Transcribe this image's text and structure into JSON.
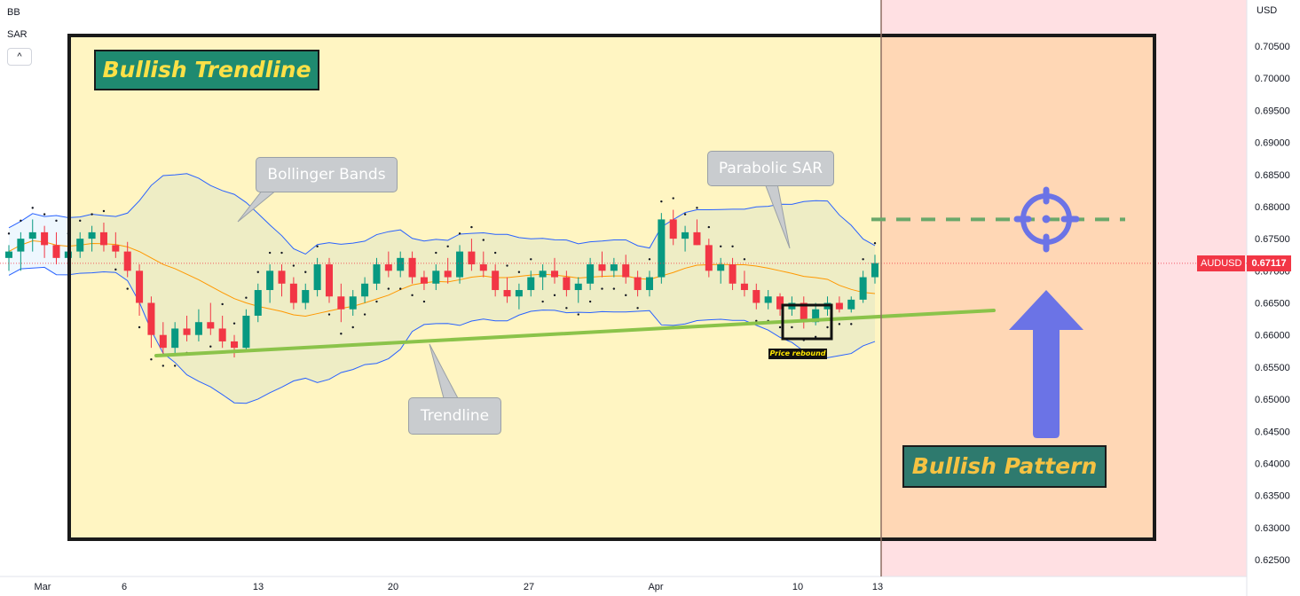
{
  "indicators": [
    "BB",
    "SAR"
  ],
  "collapse_icon": "^",
  "price_axis": {
    "currency": "USD",
    "ticks": [
      "0.70500",
      "0.70000",
      "0.69500",
      "0.69000",
      "0.68500",
      "0.68000",
      "0.67500",
      "0.67000",
      "0.66500",
      "0.66000",
      "0.65500",
      "0.65000",
      "0.64500",
      "0.64000",
      "0.63500",
      "0.63000",
      "0.62500"
    ]
  },
  "time_axis": {
    "ticks": [
      "Mar",
      "6",
      "13",
      "20",
      "27",
      "Apr",
      "10",
      "13"
    ]
  },
  "symbol_badge": {
    "symbol": "AUDUSD",
    "price": "0.67117",
    "color": "#f23645"
  },
  "annotations": {
    "title": "Bullish Trendline",
    "pattern": "Bullish Pattern",
    "callouts": {
      "bollinger": "Bollinger Bands",
      "sar": "Parabolic SAR",
      "trendline": "Trendline"
    },
    "rebound": "Price rebound"
  },
  "icons": {
    "target": "crosshair-target-icon",
    "arrow": "up-arrow-icon"
  },
  "colors": {
    "up": "#089981",
    "down": "#f23645",
    "band": "#2962ff",
    "basis": "#ff9800",
    "trendline": "#8bc34a",
    "highlight_yellow": "#fff5c2",
    "projection_orange": "#ffd7b5",
    "future_pink": "#ffe0e3"
  },
  "chart_data": {
    "type": "candlestick",
    "symbol": "AUDUSD",
    "x_range": [
      "Mar",
      "13"
    ],
    "ylim": [
      0.622,
      0.71
    ],
    "last_price": 0.67117,
    "ohlc_approx": [
      [
        0.672,
        0.674,
        0.67,
        0.673
      ],
      [
        0.673,
        0.676,
        0.67,
        0.675
      ],
      [
        0.675,
        0.678,
        0.673,
        0.676
      ],
      [
        0.676,
        0.677,
        0.672,
        0.674
      ],
      [
        0.674,
        0.676,
        0.671,
        0.672
      ],
      [
        0.672,
        0.674,
        0.67,
        0.673
      ],
      [
        0.673,
        0.676,
        0.672,
        0.675
      ],
      [
        0.675,
        0.677,
        0.673,
        0.676
      ],
      [
        0.676,
        0.6775,
        0.673,
        0.674
      ],
      [
        0.674,
        0.676,
        0.672,
        0.673
      ],
      [
        0.673,
        0.6745,
        0.669,
        0.67
      ],
      [
        0.67,
        0.671,
        0.663,
        0.665
      ],
      [
        0.665,
        0.666,
        0.658,
        0.66
      ],
      [
        0.66,
        0.662,
        0.657,
        0.658
      ],
      [
        0.658,
        0.662,
        0.657,
        0.661
      ],
      [
        0.661,
        0.663,
        0.659,
        0.66
      ],
      [
        0.66,
        0.664,
        0.659,
        0.662
      ],
      [
        0.662,
        0.665,
        0.66,
        0.661
      ],
      [
        0.661,
        0.663,
        0.658,
        0.659
      ],
      [
        0.659,
        0.66,
        0.6565,
        0.658
      ],
      [
        0.658,
        0.664,
        0.6575,
        0.663
      ],
      [
        0.663,
        0.668,
        0.662,
        0.667
      ],
      [
        0.667,
        0.671,
        0.665,
        0.67
      ],
      [
        0.67,
        0.671,
        0.666,
        0.668
      ],
      [
        0.668,
        0.669,
        0.664,
        0.665
      ],
      [
        0.665,
        0.668,
        0.664,
        0.667
      ],
      [
        0.667,
        0.672,
        0.666,
        0.671
      ],
      [
        0.671,
        0.672,
        0.665,
        0.666
      ],
      [
        0.666,
        0.668,
        0.662,
        0.664
      ],
      [
        0.664,
        0.667,
        0.663,
        0.666
      ],
      [
        0.666,
        0.669,
        0.665,
        0.668
      ],
      [
        0.668,
        0.672,
        0.667,
        0.671
      ],
      [
        0.671,
        0.673,
        0.669,
        0.67
      ],
      [
        0.67,
        0.673,
        0.669,
        0.672
      ],
      [
        0.672,
        0.673,
        0.668,
        0.669
      ],
      [
        0.669,
        0.67,
        0.667,
        0.668
      ],
      [
        0.668,
        0.671,
        0.667,
        0.67
      ],
      [
        0.67,
        0.672,
        0.668,
        0.669
      ],
      [
        0.669,
        0.674,
        0.668,
        0.673
      ],
      [
        0.673,
        0.675,
        0.67,
        0.671
      ],
      [
        0.671,
        0.673,
        0.669,
        0.67
      ],
      [
        0.67,
        0.671,
        0.666,
        0.667
      ],
      [
        0.667,
        0.669,
        0.665,
        0.666
      ],
      [
        0.666,
        0.668,
        0.664,
        0.667
      ],
      [
        0.667,
        0.67,
        0.666,
        0.669
      ],
      [
        0.669,
        0.671,
        0.667,
        0.67
      ],
      [
        0.67,
        0.672,
        0.668,
        0.669
      ],
      [
        0.669,
        0.67,
        0.666,
        0.667
      ],
      [
        0.667,
        0.669,
        0.665,
        0.668
      ],
      [
        0.668,
        0.672,
        0.667,
        0.671
      ],
      [
        0.671,
        0.673,
        0.669,
        0.67
      ],
      [
        0.67,
        0.672,
        0.669,
        0.671
      ],
      [
        0.671,
        0.6725,
        0.668,
        0.669
      ],
      [
        0.669,
        0.67,
        0.666,
        0.667
      ],
      [
        0.667,
        0.67,
        0.666,
        0.669
      ],
      [
        0.669,
        0.679,
        0.668,
        0.678
      ],
      [
        0.678,
        0.6795,
        0.674,
        0.675
      ],
      [
        0.675,
        0.677,
        0.673,
        0.676
      ],
      [
        0.676,
        0.678,
        0.674,
        0.674
      ],
      [
        0.674,
        0.675,
        0.669,
        0.67
      ],
      [
        0.67,
        0.672,
        0.668,
        0.671
      ],
      [
        0.671,
        0.672,
        0.667,
        0.668
      ],
      [
        0.668,
        0.67,
        0.666,
        0.667
      ],
      [
        0.667,
        0.668,
        0.664,
        0.665
      ],
      [
        0.665,
        0.667,
        0.664,
        0.666
      ],
      [
        0.666,
        0.6665,
        0.663,
        0.664
      ],
      [
        0.664,
        0.666,
        0.663,
        0.665
      ],
      [
        0.665,
        0.666,
        0.661,
        0.662
      ],
      [
        0.662,
        0.665,
        0.6615,
        0.664
      ],
      [
        0.664,
        0.666,
        0.663,
        0.665
      ],
      [
        0.665,
        0.666,
        0.6635,
        0.664
      ],
      [
        0.664,
        0.666,
        0.6635,
        0.6655
      ],
      [
        0.6655,
        0.67,
        0.665,
        0.669
      ],
      [
        0.669,
        0.6725,
        0.668,
        0.6712
      ]
    ],
    "trendline": {
      "from": [
        0,
        0.657
      ],
      "to": [
        75,
        0.664
      ]
    },
    "target_price": 0.678
  }
}
